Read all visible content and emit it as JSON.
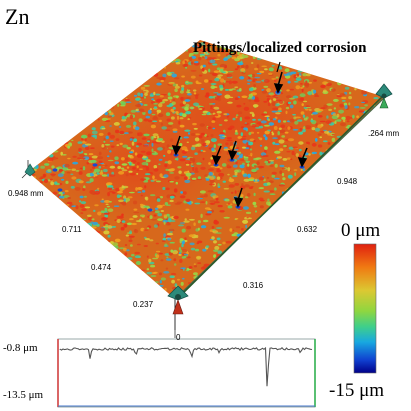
{
  "sample_label": "Zn",
  "annotation": "Pittings/localized corrosion",
  "axes": {
    "left_ticks": [
      "0.948 mm",
      "0.711",
      "0.474",
      "0.237",
      "0"
    ],
    "right_ticks": [
      "0.948",
      "0.632",
      "0.316"
    ],
    "far_right_label": ".264 mm"
  },
  "colorbar": {
    "top_label": "0 μm",
    "bottom_label": "-15 μm",
    "colors": [
      "#e02010",
      "#f07a12",
      "#dcc832",
      "#8fd640",
      "#3fcf8a",
      "#18a8e0",
      "#1040d0",
      "#000088"
    ]
  },
  "profile": {
    "top_label": "-0.8 μm",
    "bottom_label": "-13.5 μm"
  }
}
